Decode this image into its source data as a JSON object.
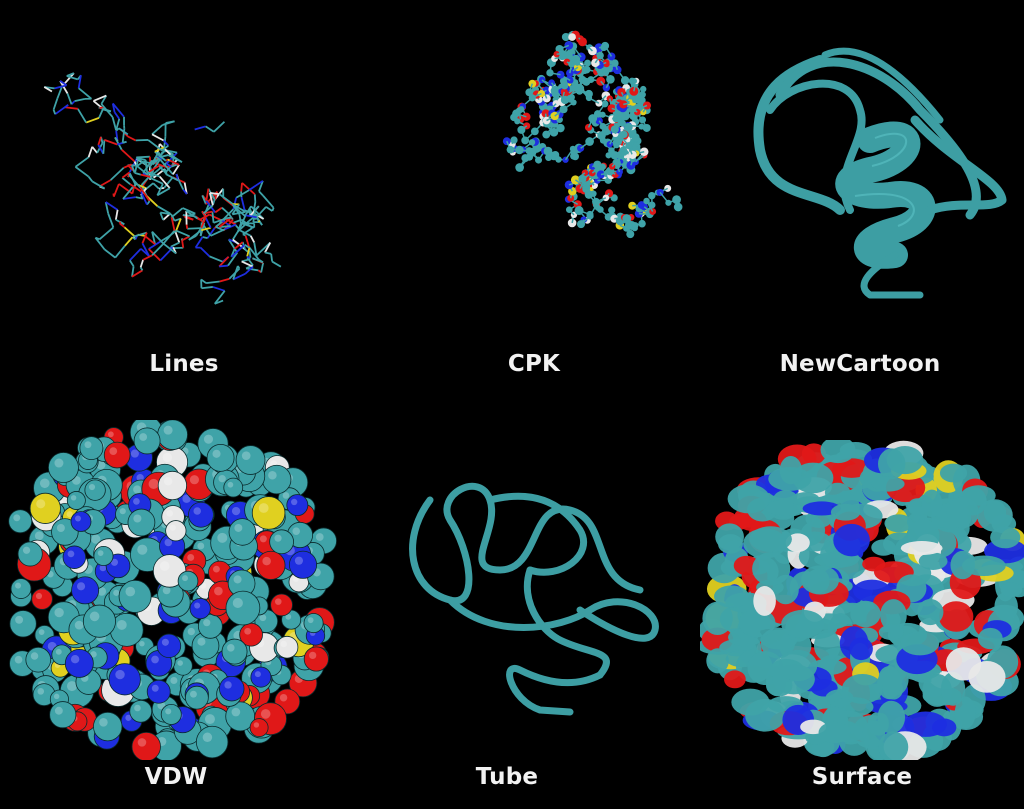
{
  "panels": [
    {
      "id": "lines",
      "label": "Lines"
    },
    {
      "id": "cpk",
      "label": "CPK"
    },
    {
      "id": "newcartoon",
      "label": "NewCartoon"
    },
    {
      "id": "vdw",
      "label": "VDW"
    },
    {
      "id": "tube",
      "label": "Tube"
    },
    {
      "id": "surface",
      "label": "Surface"
    }
  ],
  "colors": {
    "background": "#000000",
    "carbon": "#3fa3a8",
    "oxygen": "#e01818",
    "nitrogen": "#1e2ee0",
    "hydrogen": "#e8e8e8",
    "sulfur": "#e0d020",
    "label": "#f2f2f2"
  }
}
